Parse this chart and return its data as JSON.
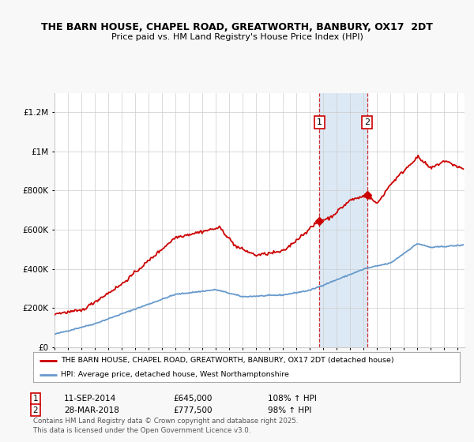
{
  "title": "THE BARN HOUSE, CHAPEL ROAD, GREATWORTH, BANBURY, OX17  2DT",
  "subtitle": "Price paid vs. HM Land Registry's House Price Index (HPI)",
  "red_label": "THE BARN HOUSE, CHAPEL ROAD, GREATWORTH, BANBURY, OX17 2DT (detached house)",
  "blue_label": "HPI: Average price, detached house, West Northamptonshire",
  "footer": "Contains HM Land Registry data © Crown copyright and database right 2025.\nThis data is licensed under the Open Government Licence v3.0.",
  "annotation1": {
    "num": "1",
    "date": "11-SEP-2014",
    "price": "£645,000",
    "pct": "108% ↑ HPI"
  },
  "annotation2": {
    "num": "2",
    "date": "28-MAR-2018",
    "price": "£777,500",
    "pct": "98% ↑ HPI"
  },
  "sale1_year": 2014.7,
  "sale1_price": 645000,
  "sale2_year": 2018.25,
  "sale2_price": 777500,
  "shaded_region": [
    2014.7,
    2018.25
  ],
  "ylim": [
    0,
    1300000
  ],
  "xlim_start": 1995,
  "xlim_end": 2025.5,
  "background_color": "#f8f8f8",
  "plot_bg_color": "#ffffff",
  "red_color": "#cc0000",
  "blue_color": "#6699cc",
  "shade_color": "#dce9f5",
  "grid_color": "#cccccc",
  "ann_y": 1150000
}
